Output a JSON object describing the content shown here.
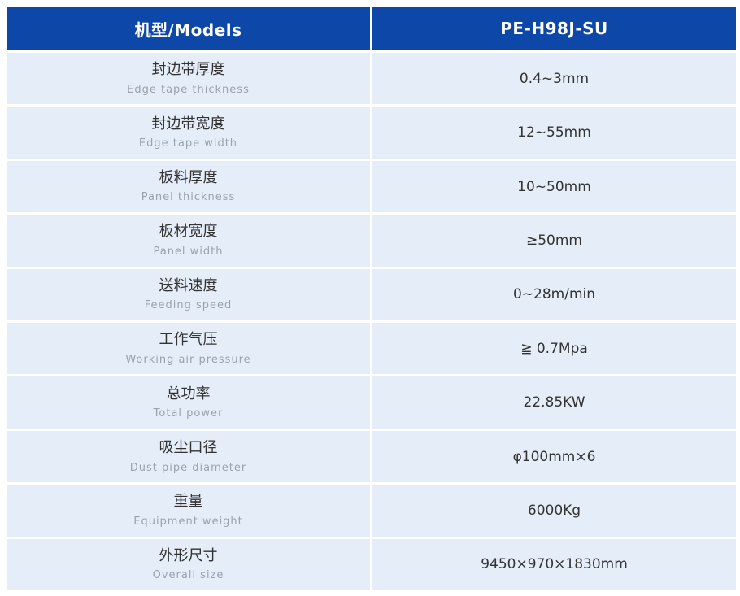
{
  "table": {
    "header": {
      "models_label": "机型/Models",
      "model_value": "PE-H98J-SU"
    },
    "rows": [
      {
        "cn": "封边带厚度",
        "en": "Edge tape thickness",
        "value": "0.4~3mm"
      },
      {
        "cn": "封边带宽度",
        "en": "Edge tape width",
        "value": "12~55mm"
      },
      {
        "cn": "板料厚度",
        "en": "Panel thickness",
        "value": "10~50mm"
      },
      {
        "cn": "板材宽度",
        "en": "Panel width",
        "value": "≥50mm"
      },
      {
        "cn": "送料速度",
        "en": "Feeding speed",
        "value": "0~28m/min"
      },
      {
        "cn": "工作气压",
        "en": "Working air pressure",
        "value": "≧ 0.7Mpa"
      },
      {
        "cn": "总功率",
        "en": "Total power",
        "value": "22.85KW"
      },
      {
        "cn": "吸尘口径",
        "en": "Dust pipe diameter",
        "value": "φ100mm×6"
      },
      {
        "cn": "重量",
        "en": "Equipment weight",
        "value": "6000Kg"
      },
      {
        "cn": "外形尺寸",
        "en": "Overall size",
        "value": "9450×970×1830mm"
      }
    ],
    "colors": {
      "header_bg": "#0d47a8",
      "header_text": "#ffffff",
      "row_bg": "#e4edf8",
      "label_text": "#333333",
      "sub_text": "#9aa3ad",
      "value_text": "#333333",
      "divider": "#ffffff"
    }
  }
}
